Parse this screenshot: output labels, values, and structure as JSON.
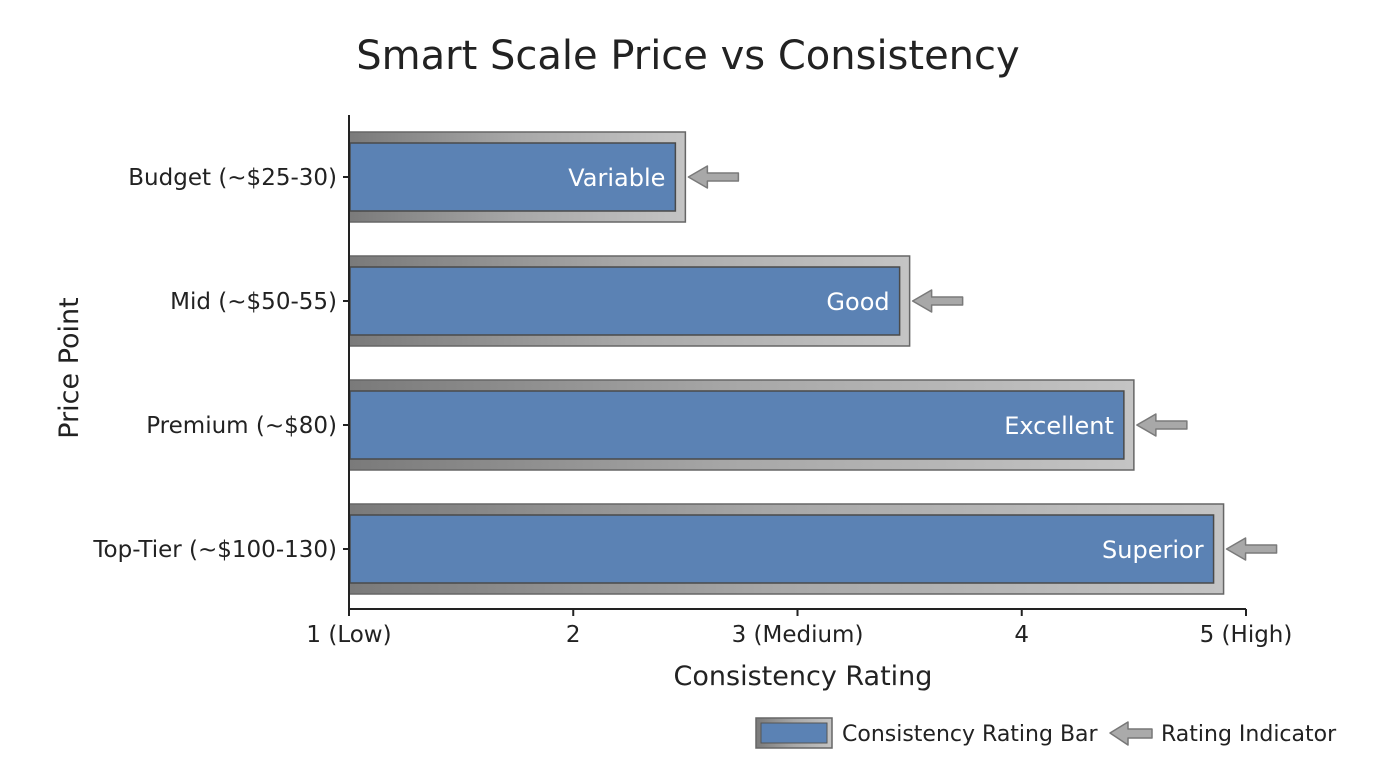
{
  "chart_data": {
    "type": "bar",
    "orientation": "horizontal",
    "title": "Smart Scale Price vs Consistency",
    "xlabel": "Consistency Rating",
    "ylabel": "Price Point",
    "categories": [
      "Budget (~$25-30)",
      "Mid (~$50-55)",
      "Premium (~$80)",
      "Top-Tier (~$100-130)"
    ],
    "series": [
      {
        "name": "Consistency Rating Bar",
        "values": [
          2.5,
          3.5,
          4.5,
          4.9
        ],
        "labels": [
          "Variable",
          "Good",
          "Excellent",
          "Superior"
        ]
      }
    ],
    "xlim": [
      1,
      5
    ],
    "xticks": [
      1,
      2,
      3,
      4,
      5
    ],
    "xtick_labels": [
      "1 (Low)",
      "2",
      "3 (Medium)",
      "4",
      "5 (High)"
    ],
    "grid": false,
    "legend": {
      "position": "bottom-right",
      "items": [
        "Consistency Rating Bar",
        "Rating Indicator"
      ]
    },
    "colors": {
      "bar_fill": "#5b82b4",
      "bar_frame": "#a0a0a0",
      "bar_frame_dark": "#777777",
      "indicator": "#999999",
      "axis": "#222222"
    }
  }
}
